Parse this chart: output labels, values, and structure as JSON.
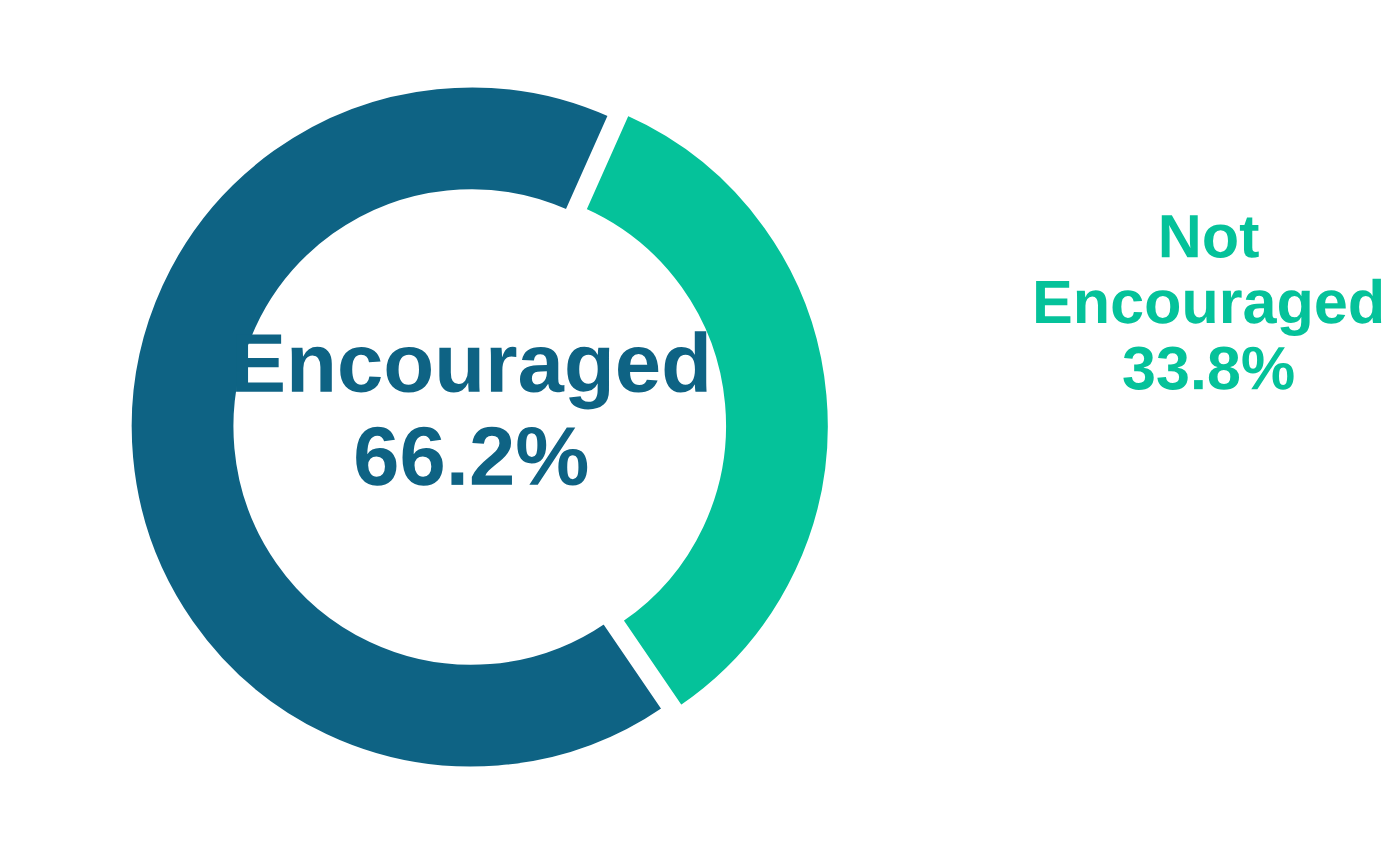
{
  "chart_data": {
    "type": "donut",
    "categories": [
      "Encouraged",
      "Not Encouraged"
    ],
    "values": [
      66.2,
      33.8
    ],
    "colors": [
      "#0e6384",
      "#05c29a"
    ],
    "value_labels": [
      "66.2%",
      "33.8%"
    ],
    "legend": false
  }
}
